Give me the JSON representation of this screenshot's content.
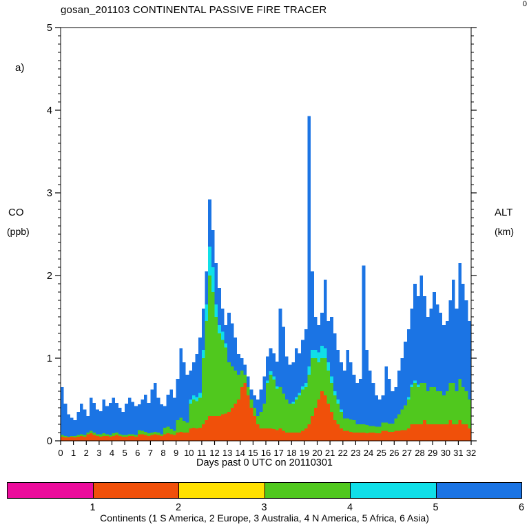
{
  "title": "gosan_201103 CONTINENTAL PASSIVE FIRE TRACER",
  "panel_label": "a)",
  "corner_mark": "0",
  "left_axis": {
    "line1": "CO",
    "line2": "(ppb)"
  },
  "right_axis": {
    "line1": "ALT",
    "line2": "(km)"
  },
  "x_axis_title": "Days past 0 UTC on 20110301",
  "colorbar": {
    "caption": "Continents (1 S America, 2 Europe, 3 Australia, 4 N America, 5 Africa, 6 Asia)",
    "segments": [
      {
        "number": "1",
        "name": "S America",
        "color": "#ec0c9c"
      },
      {
        "number": "2",
        "name": "Europe",
        "color": "#f0500a"
      },
      {
        "number": "3",
        "name": "Australia",
        "color": "#ffe000"
      },
      {
        "number": "4",
        "name": "N America",
        "color": "#50c81e"
      },
      {
        "number": "5",
        "name": "Africa",
        "color": "#10dfe8"
      },
      {
        "number": "6",
        "name": "Asia",
        "color": "#1b74e4"
      }
    ]
  },
  "chart_data": {
    "type": "area",
    "title": "gosan_201103 CONTINENTAL PASSIVE FIRE TRACER",
    "xlabel": "Days past 0 UTC on 20110301",
    "ylabel": "CO (ppb)",
    "xlim": [
      0,
      32
    ],
    "ylim": [
      0,
      5
    ],
    "x_tick_step": 1,
    "y_tick_step": 1,
    "y_minor_step": 0.1,
    "x_start": 0,
    "x_step": 0.25,
    "stack_note": "top = cumulative stacked top value in ppb; series painted in listed order (tallest first) to recreate stacking Europe->N America->Africa->Asia bottom to top",
    "series": [
      {
        "name": "6 Asia",
        "color": "#1b74e4",
        "top": [
          0.65,
          0.45,
          0.32,
          0.28,
          0.25,
          0.35,
          0.45,
          0.38,
          0.3,
          0.52,
          0.46,
          0.38,
          0.36,
          0.5,
          0.42,
          0.46,
          0.52,
          0.46,
          0.4,
          0.35,
          0.45,
          0.52,
          0.47,
          0.42,
          0.44,
          0.5,
          0.56,
          0.46,
          0.62,
          0.7,
          0.52,
          0.44,
          0.42,
          0.56,
          0.62,
          0.52,
          0.75,
          1.12,
          0.95,
          0.8,
          0.85,
          0.95,
          1.05,
          1.25,
          1.6,
          2.05,
          2.92,
          2.55,
          2.15,
          1.85,
          1.6,
          1.4,
          1.55,
          1.42,
          1.25,
          1.05,
          1.0,
          0.92,
          0.78,
          0.62,
          0.55,
          0.5,
          0.62,
          0.78,
          1.02,
          1.12,
          1.06,
          0.96,
          1.6,
          1.38,
          1.02,
          0.92,
          0.95,
          1.12,
          1.06,
          1.22,
          1.35,
          3.93,
          2.05,
          1.5,
          1.4,
          1.55,
          1.95,
          1.45,
          1.5,
          1.3,
          1.1,
          0.95,
          0.85,
          1.1,
          0.95,
          0.8,
          0.7,
          0.75,
          2.12,
          1.1,
          0.85,
          0.7,
          0.55,
          0.5,
          0.55,
          0.9,
          0.75,
          0.6,
          0.65,
          0.85,
          1.0,
          1.2,
          1.35,
          1.6,
          1.9,
          1.75,
          2.0,
          1.75,
          1.5,
          1.6,
          1.8,
          1.65,
          1.55,
          1.4,
          1.45,
          1.7,
          1.95,
          1.6,
          2.15,
          1.9,
          1.7,
          1.45
        ]
      },
      {
        "name": "5 Africa",
        "color": "#10dfe8",
        "top": [
          0.07,
          0.06,
          0.05,
          0.06,
          0.06,
          0.07,
          0.08,
          0.07,
          0.1,
          0.12,
          0.1,
          0.08,
          0.08,
          0.09,
          0.08,
          0.07,
          0.09,
          0.1,
          0.08,
          0.07,
          0.07,
          0.08,
          0.08,
          0.07,
          0.13,
          0.12,
          0.11,
          0.09,
          0.1,
          0.11,
          0.1,
          0.08,
          0.16,
          0.17,
          0.14,
          0.12,
          0.25,
          0.28,
          0.24,
          0.22,
          0.5,
          0.55,
          0.53,
          0.58,
          1.1,
          1.65,
          2.35,
          2.1,
          1.65,
          1.4,
          1.32,
          1.18,
          0.95,
          0.9,
          0.85,
          0.8,
          0.85,
          0.8,
          0.65,
          0.5,
          0.4,
          0.3,
          0.35,
          0.45,
          0.73,
          0.84,
          0.78,
          0.66,
          0.65,
          0.57,
          0.5,
          0.45,
          0.47,
          0.53,
          0.58,
          0.66,
          0.7,
          0.9,
          1.1,
          1.1,
          1.07,
          1.15,
          1.12,
          0.95,
          0.78,
          0.6,
          0.5,
          0.38,
          0.27,
          0.27,
          0.26,
          0.25,
          0.2,
          0.2,
          0.2,
          0.19,
          0.18,
          0.18,
          0.17,
          0.17,
          0.22,
          0.22,
          0.21,
          0.21,
          0.27,
          0.32,
          0.38,
          0.43,
          0.53,
          0.68,
          0.73,
          0.68,
          0.7,
          0.7,
          0.6,
          0.65,
          0.65,
          0.6,
          0.6,
          0.55,
          0.6,
          0.7,
          0.7,
          0.6,
          0.75,
          0.65,
          0.6,
          0.5
        ]
      },
      {
        "name": "4 N America",
        "color": "#50c81e",
        "top": [
          0.07,
          0.06,
          0.05,
          0.06,
          0.06,
          0.07,
          0.08,
          0.07,
          0.1,
          0.12,
          0.1,
          0.08,
          0.08,
          0.09,
          0.08,
          0.07,
          0.09,
          0.1,
          0.08,
          0.07,
          0.07,
          0.08,
          0.08,
          0.07,
          0.13,
          0.12,
          0.11,
          0.09,
          0.1,
          0.11,
          0.1,
          0.08,
          0.16,
          0.17,
          0.14,
          0.12,
          0.25,
          0.28,
          0.24,
          0.22,
          0.45,
          0.5,
          0.48,
          0.52,
          1.0,
          1.45,
          2.0,
          1.8,
          1.5,
          1.3,
          1.22,
          1.13,
          0.95,
          0.9,
          0.85,
          0.8,
          0.85,
          0.8,
          0.65,
          0.5,
          0.4,
          0.3,
          0.35,
          0.45,
          0.7,
          0.8,
          0.74,
          0.63,
          0.65,
          0.57,
          0.5,
          0.45,
          0.45,
          0.5,
          0.55,
          0.62,
          0.65,
          0.8,
          1.0,
          1.0,
          0.95,
          1.0,
          1.0,
          0.85,
          0.7,
          0.55,
          0.45,
          0.35,
          0.27,
          0.27,
          0.26,
          0.25,
          0.2,
          0.2,
          0.2,
          0.19,
          0.18,
          0.18,
          0.17,
          0.17,
          0.22,
          0.22,
          0.21,
          0.21,
          0.27,
          0.32,
          0.38,
          0.43,
          0.5,
          0.65,
          0.7,
          0.65,
          0.7,
          0.7,
          0.6,
          0.65,
          0.65,
          0.6,
          0.6,
          0.55,
          0.6,
          0.7,
          0.7,
          0.6,
          0.75,
          0.65,
          0.6,
          0.5
        ]
      },
      {
        "name": "2 Europe",
        "color": "#f0500a",
        "top": [
          0.05,
          0.04,
          0.04,
          0.05,
          0.04,
          0.05,
          0.06,
          0.05,
          0.08,
          0.09,
          0.07,
          0.06,
          0.05,
          0.06,
          0.06,
          0.05,
          0.06,
          0.07,
          0.06,
          0.05,
          0.05,
          0.06,
          0.06,
          0.05,
          0.08,
          0.08,
          0.07,
          0.06,
          0.07,
          0.08,
          0.07,
          0.06,
          0.08,
          0.09,
          0.08,
          0.07,
          0.1,
          0.11,
          0.1,
          0.1,
          0.15,
          0.16,
          0.15,
          0.16,
          0.2,
          0.25,
          0.3,
          0.3,
          0.3,
          0.3,
          0.32,
          0.33,
          0.35,
          0.4,
          0.45,
          0.5,
          0.65,
          0.7,
          0.55,
          0.4,
          0.3,
          0.2,
          0.15,
          0.15,
          0.15,
          0.15,
          0.14,
          0.13,
          0.15,
          0.12,
          0.1,
          0.1,
          0.1,
          0.1,
          0.1,
          0.12,
          0.15,
          0.2,
          0.3,
          0.4,
          0.5,
          0.6,
          0.55,
          0.45,
          0.35,
          0.25,
          0.2,
          0.15,
          0.12,
          0.12,
          0.11,
          0.1,
          0.1,
          0.1,
          0.1,
          0.09,
          0.1,
          0.1,
          0.09,
          0.09,
          0.12,
          0.12,
          0.11,
          0.11,
          0.12,
          0.12,
          0.13,
          0.13,
          0.15,
          0.2,
          0.2,
          0.2,
          0.2,
          0.25,
          0.2,
          0.2,
          0.2,
          0.2,
          0.2,
          0.2,
          0.2,
          0.25,
          0.2,
          0.2,
          0.25,
          0.2,
          0.2,
          0.15
        ]
      }
    ]
  }
}
